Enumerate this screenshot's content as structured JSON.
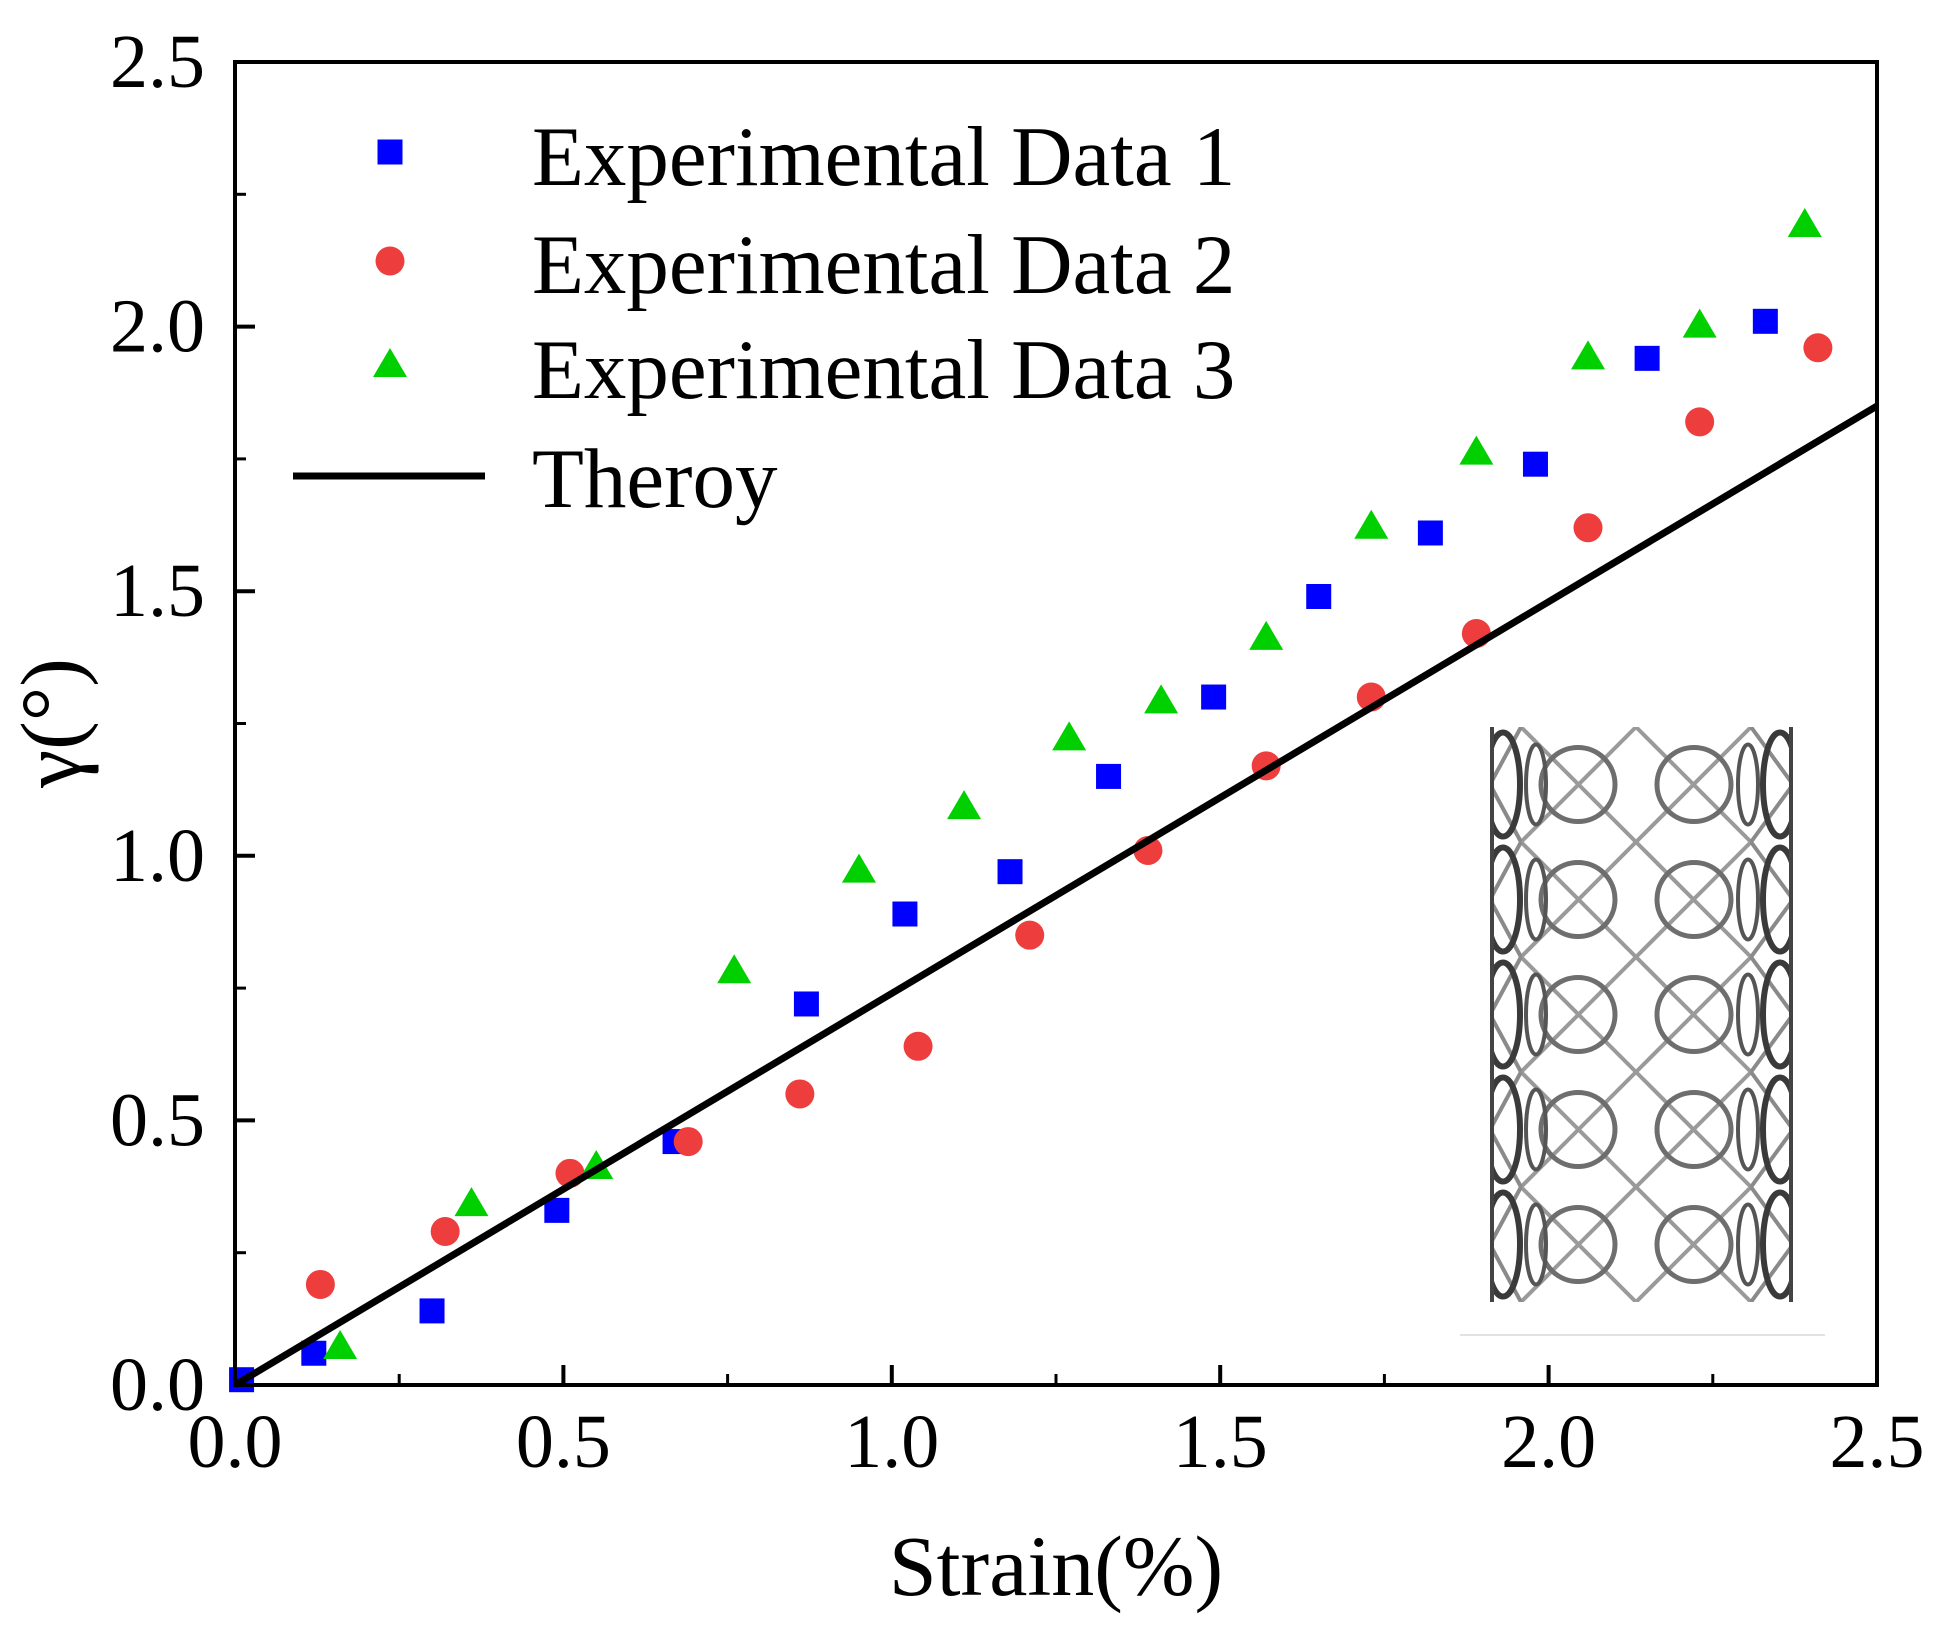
{
  "chart_data": {
    "type": "scatter",
    "title": "",
    "xlabel": "Strain(%)",
    "ylabel": "γ(°)",
    "xlim": [
      0,
      2.5
    ],
    "ylim": [
      0,
      2.5
    ],
    "xticks": [
      0,
      0.5,
      1.0,
      1.5,
      2.0,
      2.5
    ],
    "xtick_labels": [
      "0.0",
      "0.5",
      "1.0",
      "1.5",
      "2.0",
      "2.5"
    ],
    "yticks": [
      0,
      0.5,
      1.0,
      1.5,
      2.0,
      2.5
    ],
    "ytick_labels": [
      "0.0",
      "0.5",
      "1.0",
      "1.5",
      "2.0",
      "2.5"
    ],
    "grid": false,
    "legend_position": "top-left",
    "series": [
      {
        "name": "Experimental Data 1",
        "marker": "square",
        "color": "#0000FF",
        "x": [
          0.01,
          0.12,
          0.3,
          0.49,
          0.67,
          0.87,
          1.02,
          1.18,
          1.33,
          1.49,
          1.65,
          1.82,
          1.98,
          2.15,
          2.33
        ],
        "y": [
          0.01,
          0.06,
          0.14,
          0.33,
          0.46,
          0.72,
          0.89,
          0.97,
          1.15,
          1.3,
          1.49,
          1.61,
          1.74,
          1.94,
          2.01
        ]
      },
      {
        "name": "Experimental Data 2",
        "marker": "circle",
        "color": "#EE3D3D",
        "x": [
          0.13,
          0.32,
          0.51,
          0.69,
          0.86,
          1.04,
          1.21,
          1.39,
          1.57,
          1.73,
          1.89,
          2.06,
          2.23,
          2.41
        ],
        "y": [
          0.19,
          0.29,
          0.4,
          0.46,
          0.55,
          0.64,
          0.85,
          1.01,
          1.17,
          1.3,
          1.42,
          1.62,
          1.82,
          1.96
        ]
      },
      {
        "name": "Experimental Data 3",
        "marker": "triangle",
        "color": "#00D000",
        "x": [
          0.16,
          0.36,
          0.55,
          0.76,
          0.95,
          1.11,
          1.27,
          1.41,
          1.57,
          1.73,
          1.89,
          2.06,
          2.23,
          2.39
        ],
        "y": [
          0.07,
          0.34,
          0.41,
          0.78,
          0.97,
          1.09,
          1.22,
          1.29,
          1.41,
          1.62,
          1.76,
          1.94,
          2.0,
          2.19
        ]
      },
      {
        "name": "Theroy",
        "marker": "line",
        "color": "#000000",
        "x": [
          0,
          2.5
        ],
        "y": [
          0,
          1.85
        ]
      }
    ]
  }
}
